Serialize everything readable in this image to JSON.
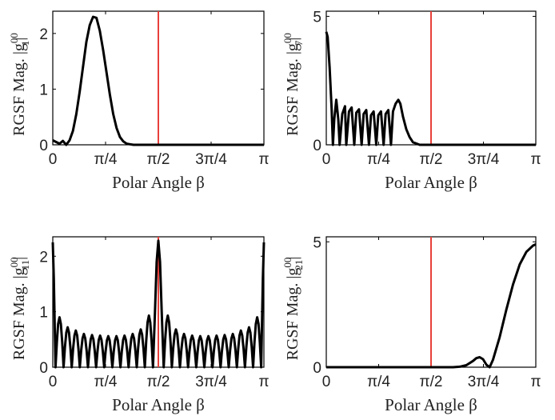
{
  "chart_data": [
    {
      "type": "line",
      "xlabel": "Polar Angle β",
      "ylabel": "RGSF Mag. |g",
      "ylabel_sup": "00",
      "ylabel_sub": "1",
      "ylabel_end": "|",
      "xlim": [
        0,
        3.14159
      ],
      "ylim": [
        0,
        2.4
      ],
      "xticks": [
        {
          "v": 0,
          "label": "0"
        },
        {
          "v": 0.7854,
          "label": "π/4"
        },
        {
          "v": 1.5708,
          "label": "π/2"
        },
        {
          "v": 2.3562,
          "label": "3π/4"
        },
        {
          "v": 3.14159,
          "label": "π"
        }
      ],
      "yticks": [
        {
          "v": 0,
          "label": "0"
        },
        {
          "v": 1,
          "label": "1"
        },
        {
          "v": 2,
          "label": "2"
        }
      ],
      "marker_x": 1.5708,
      "marker_color": "#e8403a",
      "series": [
        {
          "x": [
            0,
            0.05,
            0.1,
            0.15,
            0.2,
            0.25,
            0.3,
            0.35,
            0.4,
            0.45,
            0.5,
            0.55,
            0.6,
            0.65,
            0.7,
            0.75,
            0.8,
            0.85,
            0.9,
            0.95,
            1.0,
            1.05,
            1.1,
            1.15,
            1.2,
            1.25,
            1.3,
            1.4,
            1.5,
            1.6,
            2.0,
            2.5,
            3.14159
          ],
          "y": [
            0.08,
            0.05,
            0.02,
            0.07,
            0.0,
            0.08,
            0.25,
            0.55,
            0.95,
            1.4,
            1.85,
            2.15,
            2.3,
            2.28,
            2.05,
            1.7,
            1.3,
            0.9,
            0.55,
            0.3,
            0.14,
            0.06,
            0.02,
            0.01,
            0.0,
            0.0,
            0.0,
            0.0,
            0.0,
            0.0,
            0.0,
            0.0,
            0.0
          ]
        }
      ]
    },
    {
      "type": "line",
      "xlabel": "Polar Angle β",
      "ylabel": "RGSF Mag. |g",
      "ylabel_sup": "00",
      "ylabel_sub": "7",
      "ylabel_end": "|",
      "xlim": [
        0,
        3.14159
      ],
      "ylim": [
        0,
        5.2
      ],
      "xticks": [
        {
          "v": 0,
          "label": "0"
        },
        {
          "v": 0.7854,
          "label": "π/4"
        },
        {
          "v": 1.5708,
          "label": "π/2"
        },
        {
          "v": 2.3562,
          "label": "3π/4"
        },
        {
          "v": 3.14159,
          "label": "π"
        }
      ],
      "yticks": [
        {
          "v": 0,
          "label": "0"
        },
        {
          "v": 5,
          "label": "5"
        }
      ],
      "marker_x": 1.5708,
      "marker_color": "#e8403a",
      "series": [
        {
          "x": [
            0,
            0.02,
            0.05,
            0.08,
            0.1,
            0.12,
            0.15,
            0.18,
            0.2,
            0.24,
            0.28,
            0.3,
            0.34,
            0.38,
            0.42,
            0.45,
            0.49,
            0.53,
            0.56,
            0.6,
            0.64,
            0.67,
            0.71,
            0.75,
            0.78,
            0.82,
            0.86,
            0.89,
            0.93,
            0.97,
            1.0,
            1.04,
            1.08,
            1.11,
            1.15,
            1.2,
            1.25,
            1.3,
            1.35,
            1.4,
            1.45,
            1.5,
            1.55,
            1.6,
            2.0,
            2.5,
            3.14159
          ],
          "y": [
            4.4,
            4.2,
            3.0,
            1.4,
            0.0,
            1.0,
            1.75,
            1.0,
            0.0,
            1.2,
            1.5,
            0.0,
            1.3,
            1.45,
            0.0,
            1.25,
            1.38,
            0.0,
            1.2,
            1.35,
            0.0,
            1.15,
            1.3,
            0.0,
            1.15,
            1.3,
            0.0,
            1.2,
            1.35,
            0.0,
            1.3,
            1.6,
            1.75,
            1.6,
            1.1,
            0.6,
            0.3,
            0.1,
            0.05,
            0.0,
            0.0,
            0.0,
            0.0,
            0.0,
            0.0,
            0.0,
            0.0
          ]
        }
      ]
    },
    {
      "type": "line",
      "xlabel": "Polar Angle β",
      "ylabel": "RGSF Mag. |g",
      "ylabel_sup": "00",
      "ylabel_sub": "11",
      "ylabel_end": "|",
      "xlim": [
        0,
        3.14159
      ],
      "ylim": [
        0,
        2.35
      ],
      "xticks": [
        {
          "v": 0,
          "label": "0"
        },
        {
          "v": 0.7854,
          "label": "π/4"
        },
        {
          "v": 1.5708,
          "label": "π/2"
        },
        {
          "v": 2.3562,
          "label": "3π/4"
        },
        {
          "v": 3.14159,
          "label": "π"
        }
      ],
      "yticks": [
        {
          "v": 0,
          "label": "0"
        },
        {
          "v": 1,
          "label": "1"
        },
        {
          "v": 2,
          "label": "2"
        }
      ],
      "marker_x": 1.5708,
      "marker_color": "#e8403a",
      "lobes_left": [
        0.9,
        0.72,
        0.66,
        0.6,
        0.58,
        0.57,
        0.56,
        0.56,
        0.57,
        0.6,
        0.68,
        0.93
      ],
      "series": []
    },
    {
      "type": "line",
      "xlabel": "Polar Angle β",
      "ylabel": "RGSF Mag. |g",
      "ylabel_sup": "00",
      "ylabel_sub": "21",
      "ylabel_end": "|",
      "xlim": [
        0,
        3.14159
      ],
      "ylim": [
        0,
        5.2
      ],
      "xticks": [
        {
          "v": 0,
          "label": "0"
        },
        {
          "v": 0.7854,
          "label": "π/4"
        },
        {
          "v": 1.5708,
          "label": "π/2"
        },
        {
          "v": 2.3562,
          "label": "3π/4"
        },
        {
          "v": 3.14159,
          "label": "π"
        }
      ],
      "yticks": [
        {
          "v": 0,
          "label": "0"
        },
        {
          "v": 5,
          "label": "5"
        }
      ],
      "marker_x": 1.5708,
      "marker_color": "#e8403a",
      "series": [
        {
          "x": [
            0,
            0.5,
            1.0,
            1.5,
            1.9,
            2.0,
            2.1,
            2.2,
            2.25,
            2.3,
            2.35,
            2.4,
            2.45,
            2.5,
            2.6,
            2.7,
            2.8,
            2.9,
            3.0,
            3.1,
            3.14159
          ],
          "y": [
            0,
            0,
            0,
            0,
            0.0,
            0.02,
            0.08,
            0.25,
            0.36,
            0.4,
            0.32,
            0.1,
            0.0,
            0.3,
            1.2,
            2.3,
            3.3,
            4.1,
            4.6,
            4.85,
            4.9
          ]
        }
      ]
    }
  ]
}
